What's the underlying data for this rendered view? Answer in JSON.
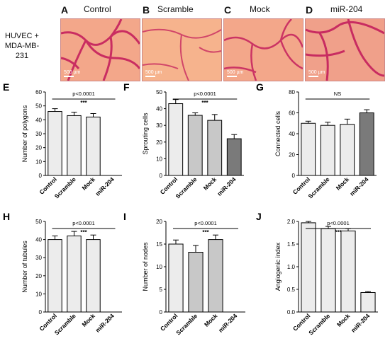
{
  "side_label": [
    "HUVEC +",
    "MDA-MB-231"
  ],
  "micro_panels": [
    {
      "letter": "A",
      "title": "Control",
      "scale": "500 µm"
    },
    {
      "letter": "B",
      "title": "Scramble",
      "scale": "500 µm"
    },
    {
      "letter": "C",
      "title": "Mock",
      "scale": "500 µm"
    },
    {
      "letter": "D",
      "title": "miR-204",
      "scale": "500 µm"
    }
  ],
  "colors": {
    "bar_light": "#ececec",
    "bar_mid": "#c8c8c8",
    "bar_dark": "#7a7a7a",
    "micro_bg": "#f3a78a",
    "micro_vessel": "#c2185b"
  },
  "chart_data": [
    {
      "letter": "E",
      "type": "bar",
      "ylabel": "Number of polygons",
      "categories": [
        "Control",
        "Scramble",
        "Mock",
        "miR-204"
      ],
      "values": [
        46,
        43,
        42,
        0
      ],
      "errors": [
        2,
        2.5,
        2.5,
        0
      ],
      "ylim": [
        0,
        60
      ],
      "yticks": [
        0,
        10,
        20,
        30,
        40,
        50,
        60
      ],
      "pvalue": "p<0.0001",
      "stars": "***",
      "sig_span": [
        0,
        3
      ]
    },
    {
      "letter": "F",
      "type": "bar",
      "ylabel": "Sprouting cells",
      "categories": [
        "Control",
        "Scramble",
        "Mock",
        "miR-204"
      ],
      "values": [
        43,
        36,
        33,
        22
      ],
      "errors": [
        2.5,
        1.5,
        3.5,
        2.5
      ],
      "ylim": [
        0,
        50
      ],
      "yticks": [
        0,
        10,
        20,
        30,
        40,
        50
      ],
      "pvalue": "p<0.0001",
      "stars": "***",
      "sig_span": [
        0,
        3
      ]
    },
    {
      "letter": "G",
      "type": "bar",
      "ylabel": "Connected cells",
      "categories": [
        "Control",
        "Scramble",
        "Mock",
        "miR-204"
      ],
      "values": [
        50,
        48,
        49,
        60
      ],
      "errors": [
        2,
        3,
        5,
        3
      ],
      "ylim": [
        0,
        80
      ],
      "yticks": [
        0,
        20,
        40,
        60,
        80
      ],
      "pvalue": "NS",
      "stars": "",
      "sig_span": [
        0,
        3
      ]
    },
    {
      "letter": "H",
      "type": "bar",
      "ylabel": "Number of tubules",
      "categories": [
        "Control",
        "Scramble",
        "Mock",
        "miR-204"
      ],
      "values": [
        40,
        42,
        40,
        0
      ],
      "errors": [
        2,
        2.5,
        2.5,
        0
      ],
      "ylim": [
        0,
        50
      ],
      "yticks": [
        0,
        10,
        20,
        30,
        40,
        50
      ],
      "pvalue": "p<0.0001",
      "stars": "***",
      "sig_span": [
        0,
        3
      ]
    },
    {
      "letter": "I",
      "type": "bar",
      "ylabel": "Number of nodes",
      "categories": [
        "Control",
        "Scramble",
        "Mock",
        "miR-204"
      ],
      "values": [
        15,
        13.2,
        16,
        0
      ],
      "errors": [
        0.9,
        1.5,
        1.0,
        0
      ],
      "ylim": [
        0,
        20
      ],
      "yticks": [
        0,
        5,
        10,
        15,
        20
      ],
      "pvalue": "p<0.0001",
      "stars": "***",
      "sig_span": [
        0,
        3
      ]
    },
    {
      "letter": "J",
      "type": "bar",
      "ylabel": "Angiogenic index",
      "categories": [
        "Control",
        "Scramble",
        "Mock",
        "miR-204"
      ],
      "values": [
        1.97,
        1.84,
        1.79,
        0.43
      ],
      "errors": [
        0.03,
        0.05,
        0.05,
        0.02
      ],
      "ylim": [
        0,
        2.0
      ],
      "yticks": [
        0.0,
        0.5,
        1.0,
        1.5,
        2.0
      ],
      "pvalue": "p<0.0001",
      "stars": "***",
      "sig_span": [
        0,
        3
      ]
    }
  ]
}
